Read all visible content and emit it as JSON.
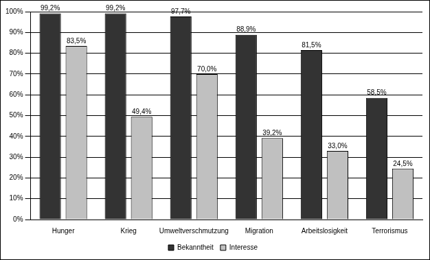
{
  "chart_data": {
    "type": "bar",
    "categories": [
      "Hunger",
      "Krieg",
      "Umweltverschmutzung",
      "Migration",
      "Arbeitslosigkeit",
      "Terrorismus"
    ],
    "series": [
      {
        "name": "Bekanntheit",
        "color": "#333333",
        "values": [
          99.2,
          99.2,
          97.7,
          88.9,
          81.5,
          58.5
        ],
        "value_labels": [
          "99,2%",
          "99,2%",
          "97,7%",
          "88,9%",
          "81,5%",
          "58,5%"
        ]
      },
      {
        "name": "Interesse",
        "color": "#c0c0c0",
        "values": [
          83.5,
          49.4,
          70.0,
          39.2,
          33.0,
          24.5
        ],
        "value_labels": [
          "83,5%",
          "49,4%",
          "70,0%",
          "39,2%",
          "33,0%",
          "24,5%"
        ]
      }
    ],
    "ylim": [
      0,
      100
    ],
    "yticks": [
      {
        "value": 0,
        "label": "0%"
      },
      {
        "value": 10,
        "label": "10%"
      },
      {
        "value": 20,
        "label": "20%"
      },
      {
        "value": 30,
        "label": "30%"
      },
      {
        "value": 40,
        "label": "40%"
      },
      {
        "value": 50,
        "label": "50%"
      },
      {
        "value": 60,
        "label": "60%"
      },
      {
        "value": 70,
        "label": "70%"
      },
      {
        "value": 80,
        "label": "80%"
      },
      {
        "value": 90,
        "label": "90%"
      },
      {
        "value": 100,
        "label": "100%"
      }
    ],
    "grid": true,
    "legend": "bottom",
    "data_labels": true
  }
}
